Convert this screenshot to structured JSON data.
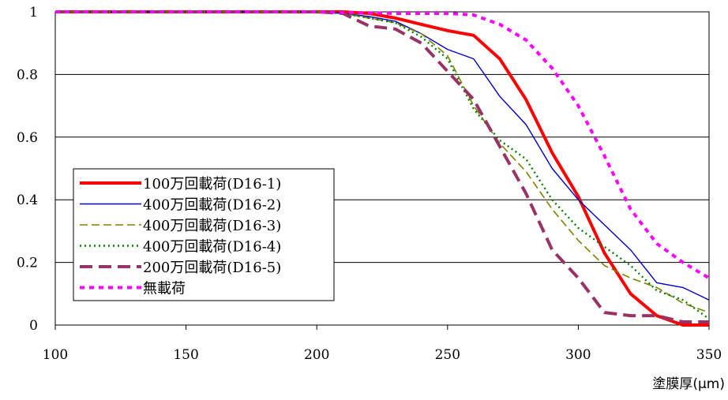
{
  "chart_data": {
    "type": "line",
    "xlabel": "塗膜厚(μm)",
    "ylabel": "",
    "xlim": [
      100,
      350
    ],
    "ylim": [
      0,
      1
    ],
    "xticks": [
      "100",
      "150",
      "200",
      "250",
      "300",
      "350"
    ],
    "yticks": [
      "0",
      "0.2",
      "0.4",
      "0.6",
      "0.8",
      "1"
    ],
    "grid": "horizontal",
    "legend_position": "lower-left",
    "series": [
      {
        "name": "100万回載荷(D16-1)",
        "color": "#ff0000",
        "dash": "solid",
        "x": [
          100,
          200,
          210,
          220,
          230,
          240,
          250,
          260,
          270,
          280,
          290,
          300,
          310,
          320,
          330,
          340,
          350
        ],
        "y": [
          1,
          1,
          1,
          0.995,
          0.98,
          0.96,
          0.94,
          0.925,
          0.85,
          0.72,
          0.55,
          0.41,
          0.23,
          0.1,
          0.03,
          0.0,
          0.0
        ]
      },
      {
        "name": "400万回載荷(D16-2)",
        "color": "#0000cc",
        "dash": "solid",
        "x": [
          100,
          200,
          210,
          220,
          230,
          240,
          250,
          260,
          270,
          280,
          290,
          300,
          310,
          320,
          330,
          340,
          350
        ],
        "y": [
          1,
          1,
          0.995,
          0.985,
          0.97,
          0.93,
          0.88,
          0.85,
          0.73,
          0.64,
          0.5,
          0.4,
          0.32,
          0.24,
          0.135,
          0.12,
          0.08
        ]
      },
      {
        "name": "400万回載荷(D16-3)",
        "color": "#808000",
        "dash": "long",
        "x": [
          100,
          200,
          210,
          220,
          230,
          240,
          250,
          260,
          270,
          280,
          290,
          300,
          310,
          320,
          330,
          340,
          350
        ],
        "y": [
          1,
          1,
          0.995,
          0.98,
          0.965,
          0.93,
          0.86,
          0.7,
          0.58,
          0.49,
          0.37,
          0.27,
          0.19,
          0.15,
          0.12,
          0.07,
          0.04
        ]
      },
      {
        "name": "400万回載荷(D16-4)",
        "color": "#008000",
        "dash": "dot",
        "x": [
          100,
          200,
          210,
          220,
          230,
          240,
          250,
          260,
          270,
          280,
          290,
          300,
          310,
          320,
          330,
          340,
          350
        ],
        "y": [
          1,
          1,
          0.995,
          0.98,
          0.965,
          0.92,
          0.85,
          0.69,
          0.59,
          0.53,
          0.4,
          0.31,
          0.25,
          0.19,
          0.11,
          0.08,
          0.02
        ]
      },
      {
        "name": "200万回載荷(D16-5)",
        "color": "#993366",
        "dash": "longdash",
        "x": [
          100,
          200,
          210,
          220,
          230,
          240,
          250,
          260,
          270,
          280,
          290,
          300,
          310,
          320,
          330,
          340,
          350
        ],
        "y": [
          1,
          1,
          0.995,
          0.955,
          0.945,
          0.9,
          0.81,
          0.72,
          0.57,
          0.42,
          0.24,
          0.15,
          0.04,
          0.03,
          0.03,
          0.01,
          0.01
        ]
      },
      {
        "name": "無載荷",
        "color": "#ff00ff",
        "dash": "shortdash",
        "x": [
          100,
          200,
          230,
          240,
          250,
          260,
          270,
          280,
          290,
          300,
          310,
          320,
          330,
          340,
          350
        ],
        "y": [
          1,
          1,
          0.995,
          0.995,
          0.995,
          0.99,
          0.96,
          0.91,
          0.82,
          0.7,
          0.54,
          0.37,
          0.26,
          0.2,
          0.15
        ]
      }
    ]
  }
}
